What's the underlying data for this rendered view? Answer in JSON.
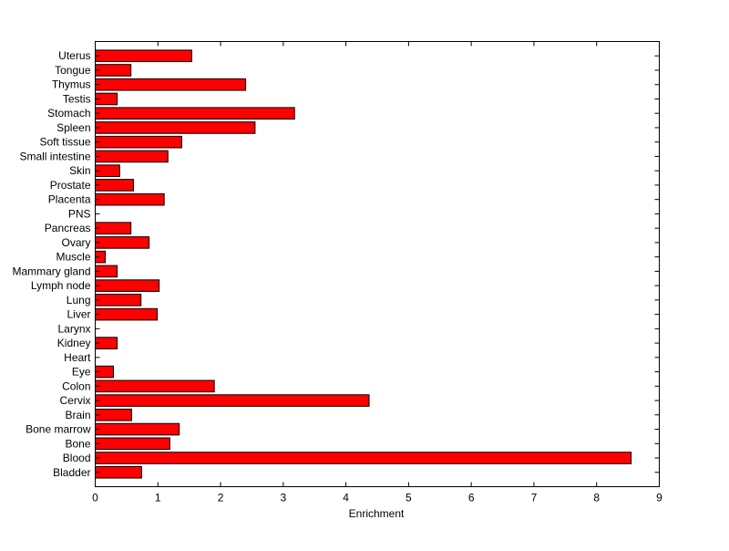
{
  "chart_data": {
    "type": "bar",
    "orientation": "horizontal",
    "title": "",
    "xlabel": "Enrichment",
    "ylabel": "",
    "xlim": [
      0,
      9
    ],
    "xticks": [
      0,
      1,
      2,
      3,
      4,
      5,
      6,
      7,
      8,
      9
    ],
    "grid": false,
    "bar_color": "#ff0000",
    "categories": [
      "Uterus",
      "Tongue",
      "Thymus",
      "Testis",
      "Stomach",
      "Spleen",
      "Soft tissue",
      "Small intestine",
      "Skin",
      "Prostate",
      "Placenta",
      "PNS",
      "Pancreas",
      "Ovary",
      "Muscle",
      "Mammary gland",
      "Lymph node",
      "Lung",
      "Liver",
      "Larynx",
      "Kidney",
      "Heart",
      "Eye",
      "Colon",
      "Cervix",
      "Brain",
      "Bone marrow",
      "Bone",
      "Blood",
      "Bladder"
    ],
    "values": [
      1.54,
      0.57,
      2.4,
      0.35,
      3.18,
      2.55,
      1.38,
      1.16,
      0.39,
      0.61,
      1.1,
      0,
      0.57,
      0.86,
      0.16,
      0.35,
      1.02,
      0.73,
      0.99,
      0,
      0.35,
      0,
      0.29,
      1.9,
      4.37,
      0.58,
      1.34,
      1.19,
      8.55,
      0.74
    ]
  }
}
